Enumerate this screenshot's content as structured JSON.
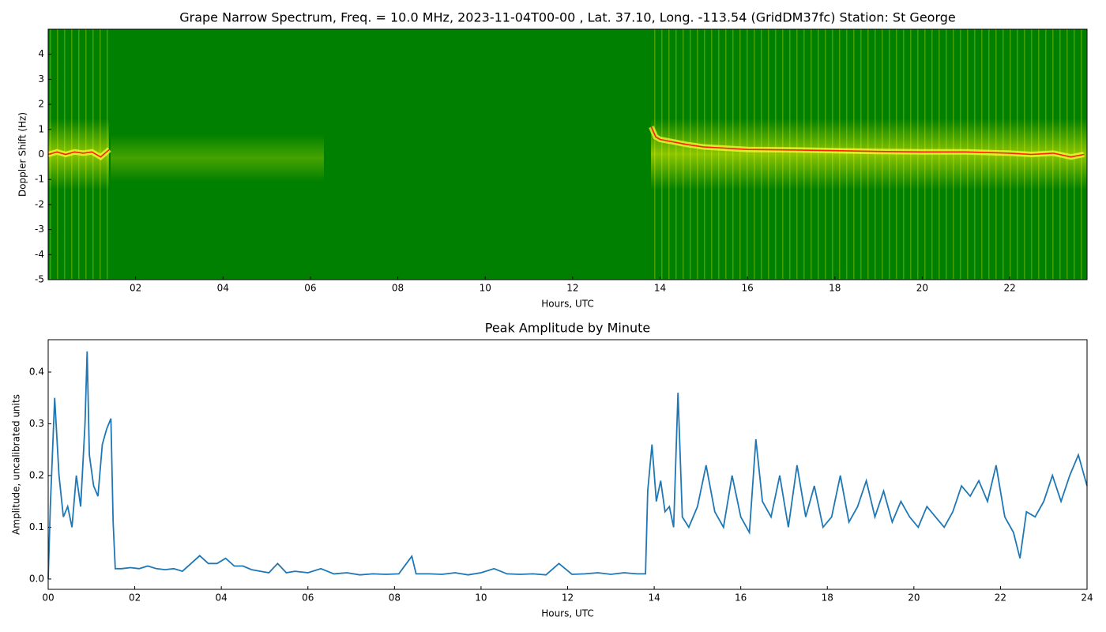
{
  "chart_data": [
    {
      "type": "spectrogram",
      "title": "Grape Narrow Spectrum, Freq. = 10.0 MHz, 2023-11-04T00-00 , Lat.  37.10, Long. -113.54 (GridDM37fc) Station: St George",
      "xlabel": "Hours, UTC",
      "ylabel": "Doppler Shift (Hz)",
      "background_color": "#008000",
      "color": "#ff2000",
      "xlim": [
        0,
        23.77
      ],
      "xticks": [
        {
          "value": 2,
          "label": "02"
        },
        {
          "value": 4,
          "label": "04"
        },
        {
          "value": 6,
          "label": "06"
        },
        {
          "value": 8,
          "label": "08"
        },
        {
          "value": 10,
          "label": "10"
        },
        {
          "value": 12,
          "label": "12"
        },
        {
          "value": 14,
          "label": "14"
        },
        {
          "value": 16,
          "label": "16"
        },
        {
          "value": 18,
          "label": "18"
        },
        {
          "value": 20,
          "label": "20"
        },
        {
          "value": 22,
          "label": "22"
        }
      ],
      "ylim": [
        -5,
        5
      ],
      "yticks": [
        -5,
        -4,
        -3,
        -2,
        -1,
        0,
        1,
        2,
        3,
        4
      ],
      "x": [
        0,
        0.2,
        0.4,
        0.6,
        0.8,
        1.0,
        1.2,
        1.4,
        7.0,
        13.8,
        13.9,
        14.0,
        14.3,
        14.6,
        15.0,
        15.5,
        16,
        17,
        18,
        19,
        20,
        21,
        22,
        22.5,
        23,
        23.4,
        23.7
      ],
      "values": [
        0.0,
        0.1,
        0.0,
        0.1,
        0.05,
        0.1,
        -0.1,
        0.2,
        null,
        1.1,
        0.7,
        0.6,
        0.5,
        0.4,
        0.3,
        0.25,
        0.2,
        0.18,
        0.15,
        0.12,
        0.1,
        0.1,
        0.05,
        0.0,
        0.05,
        -0.1,
        0.0
      ]
    },
    {
      "type": "line",
      "title": "Peak Amplitude by Minute",
      "xlabel": "Hours, UTC",
      "ylabel": "Amplitude, uncalibrated units",
      "color": "#1f77b4",
      "xlim": [
        0,
        24
      ],
      "xticks": [
        {
          "value": 0,
          "label": "00"
        },
        {
          "value": 2,
          "label": "02"
        },
        {
          "value": 4,
          "label": "04"
        },
        {
          "value": 6,
          "label": "06"
        },
        {
          "value": 8,
          "label": "08"
        },
        {
          "value": 10,
          "label": "10"
        },
        {
          "value": 12,
          "label": "12"
        },
        {
          "value": 14,
          "label": "14"
        },
        {
          "value": 16,
          "label": "16"
        },
        {
          "value": 18,
          "label": "18"
        },
        {
          "value": 20,
          "label": "20"
        },
        {
          "value": 22,
          "label": "22"
        },
        {
          "value": 24,
          "label": "24"
        }
      ],
      "ylim": [
        -0.02,
        0.4626
      ],
      "yticks": [
        {
          "value": 0,
          "label": "0.0"
        },
        0.1,
        0.2,
        0.3,
        0.4
      ],
      "x": [
        0,
        0.05,
        0.15,
        0.25,
        0.35,
        0.45,
        0.55,
        0.65,
        0.75,
        0.85,
        0.9,
        0.95,
        1.05,
        1.15,
        1.25,
        1.35,
        1.45,
        1.5,
        1.55,
        1.7,
        1.9,
        2.1,
        2.3,
        2.5,
        2.7,
        2.9,
        3.1,
        3.3,
        3.5,
        3.7,
        3.9,
        4.1,
        4.3,
        4.5,
        4.7,
        4.9,
        5.1,
        5.3,
        5.5,
        5.7,
        6.0,
        6.3,
        6.6,
        6.9,
        7.2,
        7.5,
        7.8,
        8.1,
        8.4,
        8.5,
        8.8,
        9.1,
        9.4,
        9.7,
        10.0,
        10.3,
        10.6,
        10.9,
        11.2,
        11.5,
        11.8,
        12.1,
        12.4,
        12.7,
        13.0,
        13.3,
        13.6,
        13.8,
        13.85,
        13.95,
        14.05,
        14.15,
        14.25,
        14.35,
        14.45,
        14.55,
        14.65,
        14.8,
        15.0,
        15.2,
        15.4,
        15.6,
        15.8,
        16.0,
        16.2,
        16.35,
        16.5,
        16.7,
        16.9,
        17.1,
        17.3,
        17.5,
        17.7,
        17.9,
        18.1,
        18.3,
        18.5,
        18.7,
        18.9,
        19.1,
        19.3,
        19.5,
        19.7,
        19.9,
        20.1,
        20.3,
        20.5,
        20.7,
        20.9,
        21.1,
        21.3,
        21.5,
        21.7,
        21.9,
        22.1,
        22.3,
        22.45,
        22.6,
        22.8,
        23.0,
        23.2,
        23.4,
        23.6,
        23.8,
        24.0
      ],
      "values": [
        0.0,
        0.14,
        0.35,
        0.2,
        0.12,
        0.14,
        0.1,
        0.2,
        0.14,
        0.3,
        0.44,
        0.24,
        0.18,
        0.16,
        0.26,
        0.29,
        0.31,
        0.11,
        0.02,
        0.02,
        0.022,
        0.02,
        0.025,
        0.02,
        0.018,
        0.02,
        0.015,
        0.03,
        0.045,
        0.03,
        0.03,
        0.04,
        0.025,
        0.025,
        0.018,
        0.015,
        0.012,
        0.03,
        0.012,
        0.015,
        0.012,
        0.02,
        0.01,
        0.012,
        0.008,
        0.01,
        0.009,
        0.01,
        0.044,
        0.01,
        0.01,
        0.009,
        0.012,
        0.008,
        0.012,
        0.02,
        0.01,
        0.009,
        0.01,
        0.008,
        0.03,
        0.009,
        0.01,
        0.012,
        0.009,
        0.012,
        0.01,
        0.01,
        0.17,
        0.26,
        0.15,
        0.19,
        0.13,
        0.14,
        0.1,
        0.36,
        0.12,
        0.1,
        0.14,
        0.22,
        0.13,
        0.1,
        0.2,
        0.12,
        0.09,
        0.27,
        0.15,
        0.12,
        0.2,
        0.1,
        0.22,
        0.12,
        0.18,
        0.1,
        0.12,
        0.2,
        0.11,
        0.14,
        0.19,
        0.12,
        0.17,
        0.11,
        0.15,
        0.12,
        0.1,
        0.14,
        0.12,
        0.1,
        0.13,
        0.18,
        0.16,
        0.19,
        0.15,
        0.22,
        0.12,
        0.09,
        0.04,
        0.13,
        0.12,
        0.15,
        0.2,
        0.15,
        0.2,
        0.24,
        0.18
      ]
    }
  ]
}
